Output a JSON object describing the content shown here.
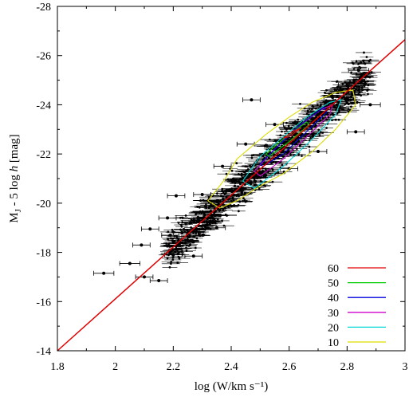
{
  "chart_data": {
    "type": "scatter",
    "xlim": [
      1.8,
      3.0
    ],
    "ylim": [
      -14,
      -28
    ],
    "y_inverted": true,
    "x_ticks": [
      "1.8",
      "2",
      "2.2",
      "2.4",
      "2.6",
      "2.8",
      "3"
    ],
    "y_ticks": [
      "-14",
      "-16",
      "-18",
      "-20",
      "-22",
      "-24",
      "-26",
      "-28"
    ],
    "xlabel": "log (W/km s⁻¹)",
    "ylabel_main": "M",
    "ylabel_sub": "J",
    "ylabel_mid": " - 5 log ",
    "ylabel_italic": "h",
    "ylabel_end": " [mag]",
    "grid": false,
    "legend_position": "bottom-right",
    "fit_line": {
      "color": "#e00000",
      "x": [
        1.8,
        3.0
      ],
      "y": [
        -14.0,
        -26.65
      ]
    },
    "points_with_xerr": [
      {
        "x": 1.96,
        "y": -17.15,
        "xerr": 0.035
      },
      {
        "x": 2.05,
        "y": -17.55,
        "xerr": 0.035
      },
      {
        "x": 2.1,
        "y": -17.0,
        "xerr": 0.03
      },
      {
        "x": 2.15,
        "y": -16.85,
        "xerr": 0.03
      },
      {
        "x": 2.09,
        "y": -18.3,
        "xerr": 0.03
      },
      {
        "x": 2.2,
        "y": -17.9,
        "xerr": 0.03
      },
      {
        "x": 2.27,
        "y": -17.85,
        "xerr": 0.03
      },
      {
        "x": 2.12,
        "y": -18.95,
        "xerr": 0.03
      },
      {
        "x": 2.18,
        "y": -19.4,
        "xerr": 0.03
      },
      {
        "x": 2.21,
        "y": -20.3,
        "xerr": 0.03
      },
      {
        "x": 2.3,
        "y": -20.35,
        "xerr": 0.03
      },
      {
        "x": 2.26,
        "y": -19.2,
        "xerr": 0.03
      },
      {
        "x": 2.35,
        "y": -19.0,
        "xerr": 0.03
      },
      {
        "x": 2.37,
        "y": -21.5,
        "xerr": 0.03
      },
      {
        "x": 2.45,
        "y": -22.4,
        "xerr": 0.03
      },
      {
        "x": 2.55,
        "y": -23.2,
        "xerr": 0.03
      },
      {
        "x": 2.6,
        "y": -21.4,
        "xerr": 0.03
      },
      {
        "x": 2.7,
        "y": -22.1,
        "xerr": 0.03
      },
      {
        "x": 2.75,
        "y": -24.3,
        "xerr": 0.03
      },
      {
        "x": 2.8,
        "y": -24.8,
        "xerr": 0.03
      },
      {
        "x": 2.84,
        "y": -25.4,
        "xerr": 0.035
      },
      {
        "x": 2.88,
        "y": -24.0,
        "xerr": 0.035
      },
      {
        "x": 2.83,
        "y": -22.9,
        "xerr": 0.03
      },
      {
        "x": 2.47,
        "y": -24.2,
        "xerr": 0.03
      },
      {
        "x": 2.23,
        "y": -18.8,
        "xerr": 0.03
      },
      {
        "x": 2.19,
        "y": -18.7,
        "xerr": 0.03
      }
    ],
    "series": [
      {
        "name": "60",
        "color": "#e00000",
        "contour": [
          [
            2.58,
            -22.65
          ],
          [
            2.62,
            -22.95
          ],
          [
            2.64,
            -23.05
          ],
          [
            2.6,
            -22.7
          ]
        ]
      },
      {
        "name": "50",
        "color": "#00cc00",
        "contour": [
          [
            2.52,
            -22.0
          ],
          [
            2.58,
            -22.6
          ],
          [
            2.66,
            -23.3
          ],
          [
            2.67,
            -23.2
          ],
          [
            2.6,
            -22.5
          ],
          [
            2.53,
            -21.9
          ]
        ]
      },
      {
        "name": "40",
        "color": "#0000dd",
        "contour": [
          [
            2.5,
            -21.6
          ],
          [
            2.56,
            -22.3
          ],
          [
            2.64,
            -23.2
          ],
          [
            2.72,
            -23.9
          ],
          [
            2.73,
            -23.7
          ],
          [
            2.66,
            -22.9
          ],
          [
            2.58,
            -22.0
          ],
          [
            2.51,
            -21.5
          ]
        ]
      },
      {
        "name": "30",
        "color": "#cc00cc",
        "contour": [
          [
            2.48,
            -21.3
          ],
          [
            2.55,
            -22.2
          ],
          [
            2.63,
            -23.1
          ],
          [
            2.71,
            -23.8
          ],
          [
            2.75,
            -24.0
          ],
          [
            2.74,
            -23.6
          ],
          [
            2.67,
            -22.8
          ],
          [
            2.58,
            -21.8
          ],
          [
            2.5,
            -21.1
          ]
        ]
      },
      {
        "name": "20",
        "color": "#00d8d8",
        "contour": [
          [
            2.44,
            -20.9
          ],
          [
            2.5,
            -21.9
          ],
          [
            2.58,
            -22.7
          ],
          [
            2.66,
            -23.5
          ],
          [
            2.74,
            -24.1
          ],
          [
            2.78,
            -24.2
          ],
          [
            2.76,
            -23.6
          ],
          [
            2.68,
            -22.6
          ],
          [
            2.58,
            -21.5
          ],
          [
            2.48,
            -20.6
          ]
        ]
      },
      {
        "name": "10",
        "color": "#dddd00",
        "contour": [
          [
            2.32,
            -20.1
          ],
          [
            2.38,
            -21.0
          ],
          [
            2.42,
            -21.8
          ],
          [
            2.52,
            -22.8
          ],
          [
            2.6,
            -23.5
          ],
          [
            2.68,
            -24.1
          ],
          [
            2.76,
            -24.5
          ],
          [
            2.82,
            -24.6
          ],
          [
            2.83,
            -24.0
          ],
          [
            2.76,
            -23.0
          ],
          [
            2.68,
            -22.1
          ],
          [
            2.58,
            -21.2
          ],
          [
            2.5,
            -20.7
          ],
          [
            2.42,
            -20.1
          ],
          [
            2.36,
            -19.8
          ]
        ]
      }
    ]
  }
}
